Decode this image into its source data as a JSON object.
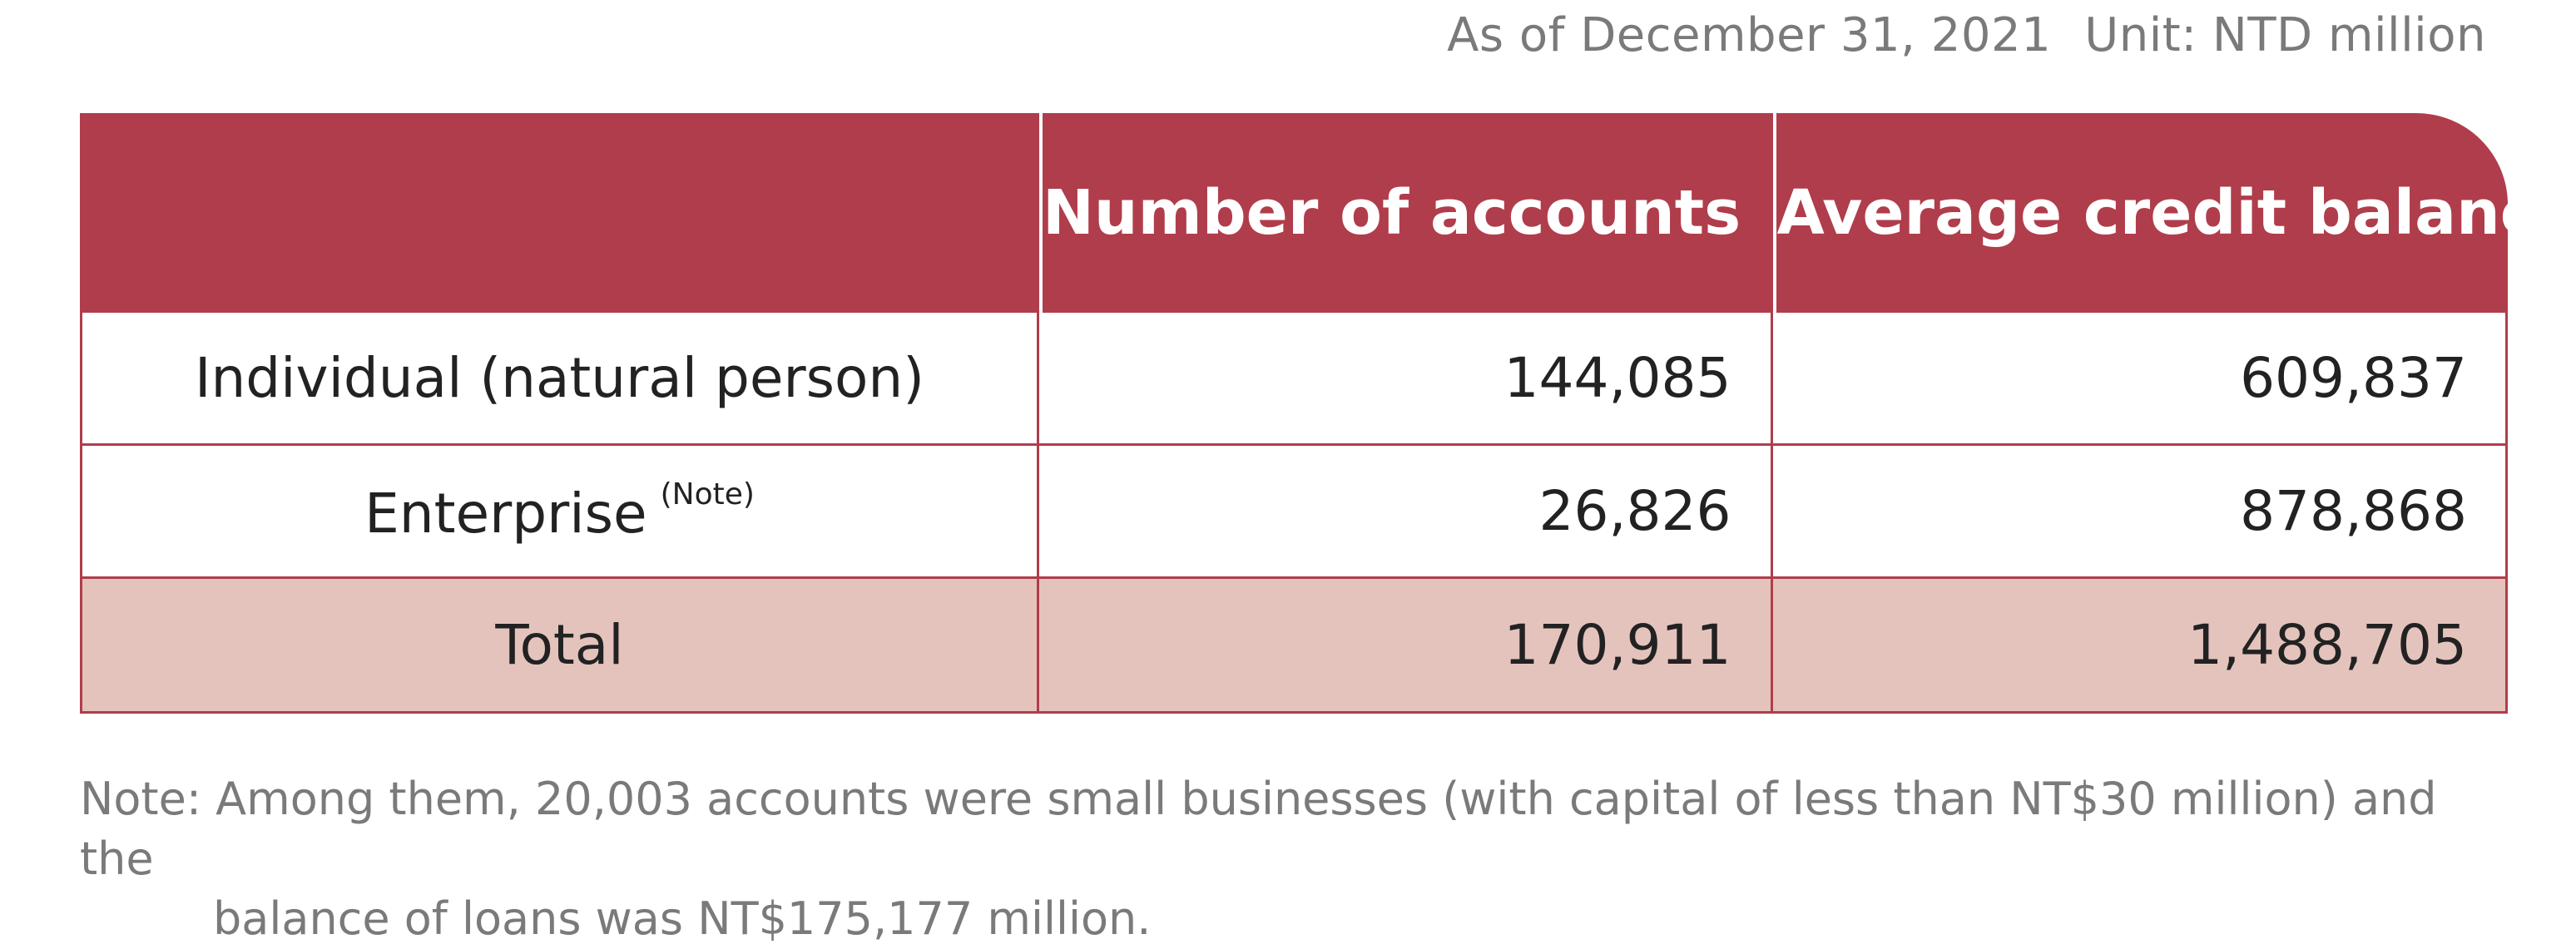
{
  "caption": {
    "date": "As of December 31, 2021",
    "unit": "Unit: NTD million"
  },
  "table": {
    "headers": {
      "label": "",
      "accounts": "Number of accounts",
      "balance": "Average credit balance"
    },
    "rows": [
      {
        "label": "Individual (natural person)",
        "note": "",
        "accounts": "144,085",
        "balance": "609,837"
      },
      {
        "label": "Enterprise",
        "note": "(Note)",
        "accounts": "26,826",
        "balance": "878,868"
      },
      {
        "label": "Total",
        "note": "",
        "accounts": "170,911",
        "balance": "1,488,705"
      }
    ]
  },
  "footnote": {
    "line1": "Note: Among them, 20,003 accounts were small businesses (with capital of less than NT$30 million) and the",
    "line2": "balance of loans was NT$175,177 million."
  },
  "colors": {
    "header_bg": "#b03d4b",
    "total_bg": "#e5c3bd",
    "border": "#b03d4b"
  }
}
